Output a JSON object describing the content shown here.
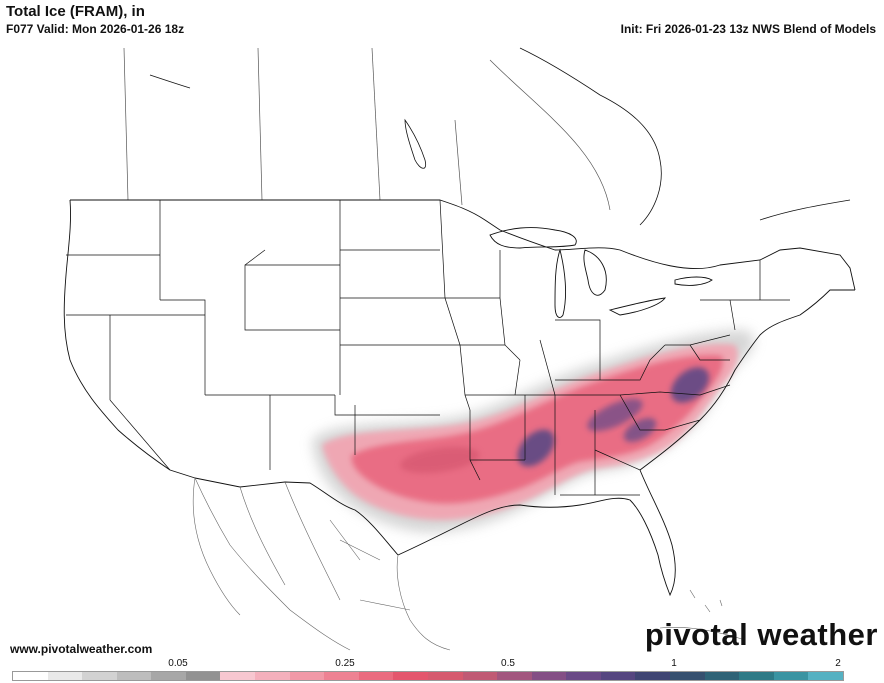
{
  "header": {
    "title": "Total Ice (FRAM), in",
    "valid": "F077 Valid: Mon 2026-01-26 18z",
    "init": "Init: Fri 2026-01-23 13z NWS Blend of Models"
  },
  "footer": {
    "website": "www.pivotalweather.com",
    "brand": "pivotal weather"
  },
  "legend": {
    "tick_labels": [
      "0.05",
      "0.25",
      "0.5",
      "1",
      "2"
    ],
    "colors": [
      "#ffffff",
      "#e9e9e9",
      "#d2d2d2",
      "#bdbdbd",
      "#a7a7a7",
      "#929292",
      "#f7c7d0",
      "#f4b0bc",
      "#f199a7",
      "#ee8293",
      "#ea6b7f",
      "#e4566d",
      "#d65a6e",
      "#c05a74",
      "#a2567e",
      "#844f85",
      "#6a4a86",
      "#554680",
      "#3f4573",
      "#36506f",
      "#2f6377",
      "#2e7a86",
      "#3a94a2",
      "#55b1c2"
    ]
  },
  "colors": {
    "ice_light_gray": "#d8d8d8",
    "ice_pink": "#f4a3b1",
    "ice_red": "#ea5f78",
    "ice_purple": "#6f4f8a",
    "ice_dark_purple": "#4b3f78",
    "map_lines": "#000000"
  }
}
